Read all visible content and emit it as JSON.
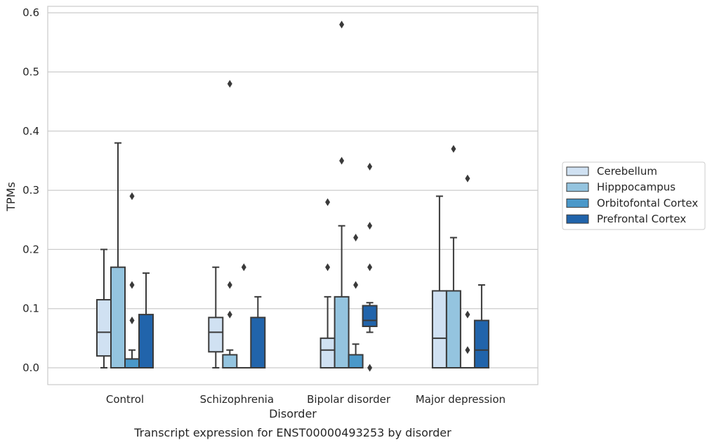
{
  "chart_data": {
    "type": "box",
    "caption": "Transcript expression for ENST00000493253 by disorder",
    "xlabel": "Disorder",
    "ylabel": "TPMs",
    "ylim": [
      -0.028,
      0.612
    ],
    "yticks": [
      0.0,
      0.1,
      0.2,
      0.3,
      0.4,
      0.5,
      0.6
    ],
    "ytick_labels": [
      "0.0",
      "0.1",
      "0.2",
      "0.3",
      "0.4",
      "0.5",
      "0.6"
    ],
    "grid": "horizontal",
    "legend_position": "right",
    "categories": [
      "Control",
      "Schizophrenia",
      "Bipolar disorder",
      "Major depression"
    ],
    "series": [
      {
        "name": "Cerebellum",
        "color": "#d0e1f2",
        "boxes": [
          {
            "whislo": 0.0,
            "q1": 0.02,
            "med": 0.06,
            "q3": 0.115,
            "whishi": 0.2,
            "fliers": []
          },
          {
            "whislo": 0.0,
            "q1": 0.027,
            "med": 0.06,
            "q3": 0.085,
            "whishi": 0.17,
            "fliers": []
          },
          {
            "whislo": 0.0,
            "q1": 0.0,
            "med": 0.03,
            "q3": 0.05,
            "whishi": 0.12,
            "fliers": [
              0.17,
              0.28
            ]
          },
          {
            "whislo": 0.0,
            "q1": 0.0,
            "med": 0.05,
            "q3": 0.13,
            "whishi": 0.29,
            "fliers": []
          }
        ]
      },
      {
        "name": "Hipppocampus",
        "color": "#94c4df",
        "boxes": [
          {
            "whislo": 0.0,
            "q1": 0.0,
            "med": 0.0,
            "q3": 0.17,
            "whishi": 0.38,
            "fliers": []
          },
          {
            "whislo": 0.0,
            "q1": 0.0,
            "med": 0.0,
            "q3": 0.022,
            "whishi": 0.03,
            "fliers": [
              0.09,
              0.14,
              0.48
            ]
          },
          {
            "whislo": 0.0,
            "q1": 0.0,
            "med": 0.0,
            "q3": 0.12,
            "whishi": 0.24,
            "fliers": [
              0.35,
              0.58
            ]
          },
          {
            "whislo": 0.0,
            "q1": 0.0,
            "med": 0.0,
            "q3": 0.13,
            "whishi": 0.22,
            "fliers": [
              0.37
            ]
          }
        ]
      },
      {
        "name": "Orbitofontal Cortex",
        "color": "#4a98c9",
        "boxes": [
          {
            "whislo": 0.0,
            "q1": 0.0,
            "med": 0.0,
            "q3": 0.015,
            "whishi": 0.03,
            "fliers": [
              0.08,
              0.14,
              0.29
            ]
          },
          {
            "whislo": 0.0,
            "q1": 0.0,
            "med": 0.0,
            "q3": 0.0,
            "whishi": 0.0,
            "fliers": [
              0.17
            ]
          },
          {
            "whislo": 0.0,
            "q1": 0.0,
            "med": 0.0,
            "q3": 0.022,
            "whishi": 0.04,
            "fliers": [
              0.14,
              0.22
            ]
          },
          {
            "whislo": 0.0,
            "q1": 0.0,
            "med": 0.0,
            "q3": 0.0,
            "whishi": 0.0,
            "fliers": [
              0.03,
              0.09,
              0.32
            ]
          }
        ]
      },
      {
        "name": "Prefrontal Cortex",
        "color": "#2164ab",
        "boxes": [
          {
            "whislo": 0.0,
            "q1": 0.0,
            "med": 0.0,
            "q3": 0.09,
            "whishi": 0.16,
            "fliers": []
          },
          {
            "whislo": 0.0,
            "q1": 0.0,
            "med": 0.0,
            "q3": 0.085,
            "whishi": 0.12,
            "fliers": []
          },
          {
            "whislo": 0.06,
            "q1": 0.07,
            "med": 0.08,
            "q3": 0.105,
            "whishi": 0.11,
            "fliers": [
              0.0,
              0.17,
              0.24,
              0.34
            ]
          },
          {
            "whislo": 0.0,
            "q1": 0.0,
            "med": 0.03,
            "q3": 0.08,
            "whishi": 0.14,
            "fliers": []
          }
        ]
      }
    ]
  }
}
